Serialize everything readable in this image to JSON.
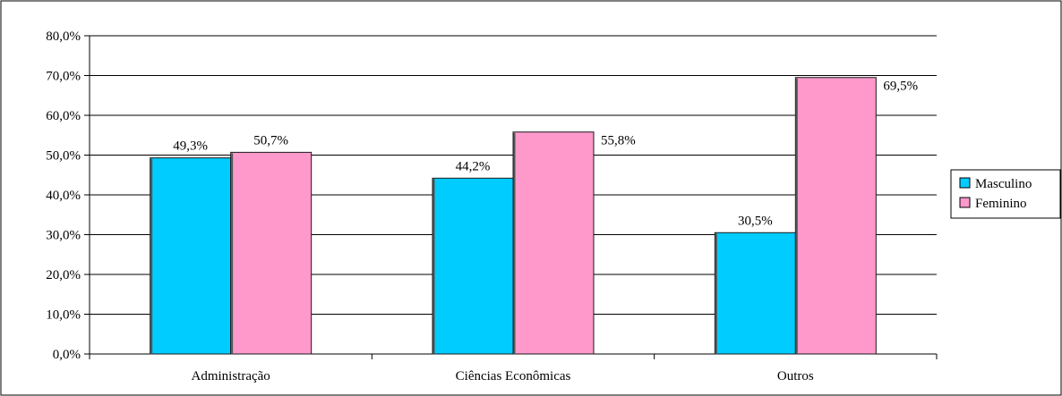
{
  "chart_data": {
    "type": "bar",
    "categories": [
      "Administração",
      "Ciências Econômicas",
      "Outros"
    ],
    "series": [
      {
        "name": "Masculino",
        "values": [
          49.3,
          44.2,
          30.5
        ],
        "labels": [
          "49,3%",
          "44,2%",
          "30,5%"
        ],
        "color": "#00ccff"
      },
      {
        "name": "Feminino",
        "values": [
          50.7,
          55.8,
          69.5
        ],
        "labels": [
          "50,7%",
          "55,8%",
          "69,5%"
        ],
        "color": "#ff99cc"
      }
    ],
    "yticks": [
      "0,0%",
      "10,0%",
      "20,0%",
      "30,0%",
      "40,0%",
      "50,0%",
      "60,0%",
      "70,0%",
      "80,0%"
    ],
    "ylim": [
      0,
      80
    ],
    "ystep": 10,
    "grid": true,
    "legend_position": "right",
    "title": "",
    "xlabel": "",
    "ylabel": ""
  }
}
